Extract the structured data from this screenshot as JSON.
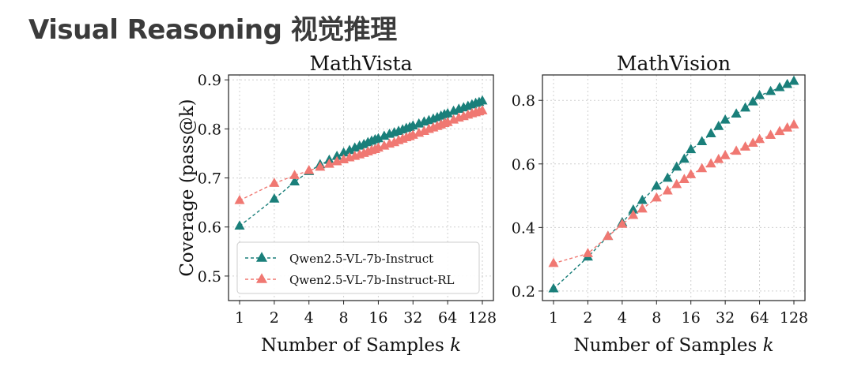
{
  "page": {
    "title": "Visual Reasoning 视觉推理"
  },
  "colors": {
    "teal": "#1a7f7a",
    "salmon": "#f07872"
  },
  "chart_data": [
    {
      "type": "line",
      "title": "MathVista",
      "xlabel": "Number of Samples k",
      "xlabel_main": "Number of Samples ",
      "xlabel_var": "k",
      "ylabel": "Coverage (pass@k)",
      "xscale": "log2",
      "xlim": [
        1,
        128
      ],
      "ylim": [
        0.45,
        0.91
      ],
      "xticks": [
        1,
        2,
        4,
        8,
        16,
        32,
        64,
        128
      ],
      "xtick_labels": [
        "1",
        "2",
        "4",
        "8",
        "16",
        "32",
        "64",
        "128"
      ],
      "yticks": [
        0.5,
        0.6,
        0.7,
        0.8,
        0.9
      ],
      "ytick_labels": [
        "0.5",
        "0.6",
        "0.7",
        "0.8",
        "0.9"
      ],
      "x": [
        1,
        2,
        3,
        4,
        5,
        6,
        7,
        8,
        9,
        10,
        11,
        12,
        13,
        14,
        15,
        16,
        18,
        20,
        22,
        24,
        26,
        28,
        30,
        32,
        36,
        40,
        44,
        48,
        52,
        56,
        60,
        64,
        72,
        80,
        88,
        96,
        104,
        112,
        120,
        128
      ],
      "series": [
        {
          "name": "Qwen2.5-VL-7b-Instruct",
          "color": "#1a7f7a",
          "values": [
            0.602,
            0.657,
            0.692,
            0.713,
            0.727,
            0.736,
            0.744,
            0.751,
            0.756,
            0.761,
            0.765,
            0.768,
            0.772,
            0.775,
            0.778,
            0.78,
            0.785,
            0.789,
            0.792,
            0.795,
            0.798,
            0.801,
            0.803,
            0.806,
            0.81,
            0.814,
            0.817,
            0.82,
            0.823,
            0.826,
            0.829,
            0.831,
            0.836,
            0.84,
            0.843,
            0.846,
            0.849,
            0.852,
            0.854,
            0.857
          ]
        },
        {
          "name": "Qwen2.5-VL-7b-Instruct-RL",
          "color": "#f07872",
          "values": [
            0.654,
            0.689,
            0.705,
            0.715,
            0.722,
            0.728,
            0.733,
            0.737,
            0.741,
            0.744,
            0.747,
            0.75,
            0.753,
            0.756,
            0.758,
            0.761,
            0.765,
            0.769,
            0.772,
            0.776,
            0.779,
            0.782,
            0.784,
            0.787,
            0.791,
            0.795,
            0.799,
            0.802,
            0.805,
            0.808,
            0.811,
            0.813,
            0.818,
            0.822,
            0.825,
            0.828,
            0.831,
            0.833,
            0.835,
            0.837
          ]
        }
      ],
      "legend": "lower-right"
    },
    {
      "type": "line",
      "title": "MathVision",
      "xlabel": "Number of Samples k",
      "xlabel_main": "Number of Samples ",
      "xlabel_var": "k",
      "ylabel": "",
      "xscale": "log2",
      "xlim": [
        1,
        128
      ],
      "ylim": [
        0.17,
        0.88
      ],
      "xticks": [
        1,
        2,
        4,
        8,
        16,
        32,
        64,
        128
      ],
      "xtick_labels": [
        "1",
        "2",
        "4",
        "8",
        "16",
        "32",
        "64",
        "128"
      ],
      "yticks": [
        0.2,
        0.4,
        0.6,
        0.8
      ],
      "ytick_labels": [
        "0.2",
        "0.4",
        "0.6",
        "0.8"
      ],
      "x": [
        1,
        2,
        3,
        4,
        5,
        6,
        8,
        10,
        12,
        14,
        16,
        20,
        24,
        28,
        32,
        40,
        48,
        56,
        64,
        80,
        96,
        112,
        128
      ],
      "series": [
        {
          "name": "Qwen2.5-VL-7b-Instruct",
          "color": "#1a7f7a",
          "values": [
            0.207,
            0.307,
            0.372,
            0.415,
            0.455,
            0.485,
            0.53,
            0.555,
            0.59,
            0.615,
            0.645,
            0.67,
            0.695,
            0.718,
            0.738,
            0.757,
            0.776,
            0.795,
            0.815,
            0.828,
            0.84,
            0.85,
            0.86
          ]
        },
        {
          "name": "Qwen2.5-VL-7b-Instruct-RL",
          "color": "#f07872",
          "values": [
            0.287,
            0.318,
            0.372,
            0.41,
            0.438,
            0.458,
            0.493,
            0.515,
            0.535,
            0.551,
            0.566,
            0.585,
            0.6,
            0.614,
            0.626,
            0.64,
            0.653,
            0.665,
            0.677,
            0.69,
            0.702,
            0.713,
            0.723
          ]
        }
      ],
      "legend": "none"
    }
  ]
}
